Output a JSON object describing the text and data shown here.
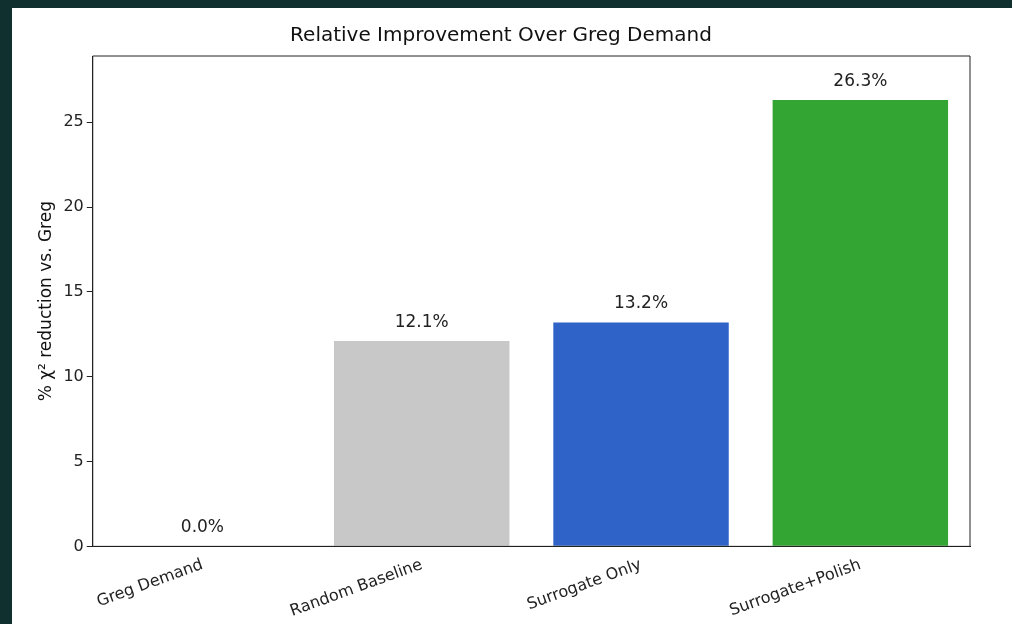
{
  "chart_data": {
    "type": "bar",
    "title": "Relative Improvement Over Greg Demand",
    "ylabel": "% χ² reduction vs. Greg",
    "categories": [
      "Greg Demand",
      "Random Baseline",
      "Surrogate Only",
      "Surrogate+Polish"
    ],
    "values": [
      0.0,
      12.1,
      13.2,
      26.3
    ],
    "colors": [
      "#1f77b4",
      "#c8c8c8",
      "#3063c8",
      "#33a532"
    ],
    "value_labels": [
      "0.0%",
      "12.1%",
      "13.2%",
      "26.3%"
    ],
    "ylim": [
      0,
      28.9
    ],
    "yticks": [
      0,
      5,
      10,
      15,
      20,
      25
    ],
    "grid": false,
    "legend": false
  }
}
